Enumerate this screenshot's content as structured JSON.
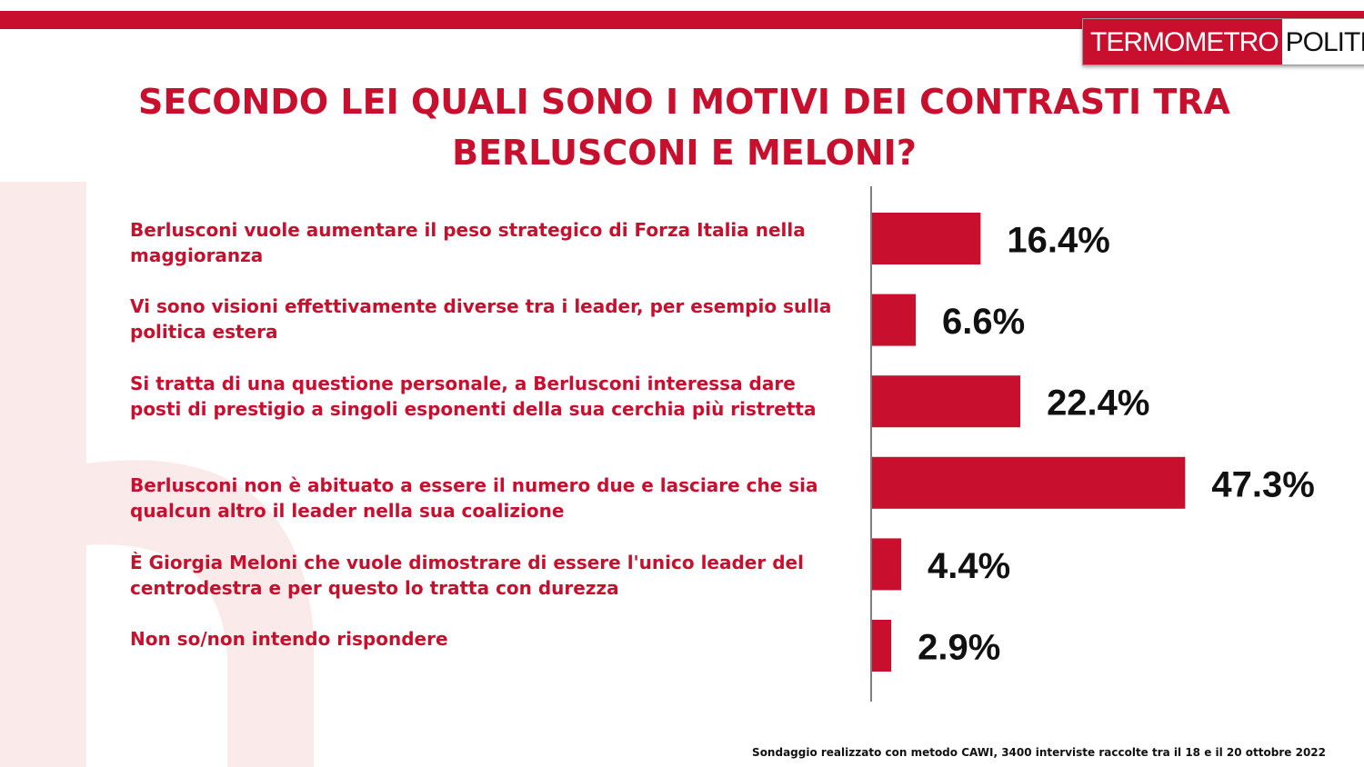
{
  "brand": {
    "part1": "TERMOMETRO",
    "part2": "POLITICO",
    "accent_color": "#c8102e"
  },
  "title_line1": "SECONDO LEI QUALI SONO I MOTIVI DEI CONTRASTI TRA",
  "title_line2": "BERLUSCONI E MELONI?",
  "footnote": "Sondaggio realizzato con metodo CAWI, 3400 interviste raccolte tra il 18 e il 20 ottobre 2022",
  "chart_data": {
    "type": "bar",
    "orientation": "horizontal",
    "title": "SECONDO LEI QUALI SONO I MOTIVI DEI CONTRASTI TRA BERLUSCONI E MELONI?",
    "categories": [
      "Berlusconi vuole aumentare il peso strategico di Forza Italia nella maggioranza",
      "Vi sono visioni effettivamente diverse tra i leader, per esempio sulla politica estera",
      "Si tratta di una questione personale, a Berlusconi interessa dare posti di prestigio a singoli esponenti della sua cerchia più ristretta",
      "Berlusconi non è abituato a essere il numero due e lasciare che sia qualcun altro il leader nella sua coalizione",
      "È Giorgia Meloni che vuole dimostrare di essere l'unico leader del centrodestra e per questo lo tratta con durezza",
      "Non so/non intendo rispondere"
    ],
    "values": [
      16.4,
      6.6,
      22.4,
      47.3,
      4.4,
      2.9
    ],
    "value_labels": [
      "16.4%",
      "6.6%",
      "22.4%",
      "47.3%",
      "4.4%",
      "2.9%"
    ],
    "xlim": [
      0,
      50
    ],
    "bar_color": "#c8102e",
    "grid": false,
    "legend": "none"
  }
}
